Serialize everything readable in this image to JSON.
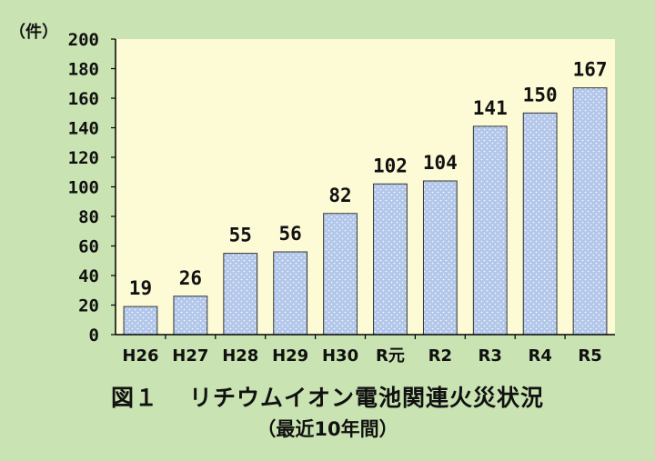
{
  "colors": {
    "background": "#c9e3b2",
    "plot_area": "#fdfbd6",
    "bar_fill": "#b3c7ea",
    "bar_dot": "#ffffff",
    "bar_stroke": "#333333"
  },
  "caption": {
    "label": "図１",
    "title": "リチウムイオン電池関連火災状況",
    "subtitle": "（最近10年間）"
  },
  "chart_data": {
    "type": "bar",
    "ylabel": "（件）",
    "ylim": [
      0,
      200
    ],
    "yticks": [
      0,
      20,
      40,
      60,
      80,
      100,
      120,
      140,
      160,
      180,
      200
    ],
    "grid": false,
    "categories": [
      "H26",
      "H27",
      "H28",
      "H29",
      "H30",
      "R元",
      "R2",
      "R3",
      "R4",
      "R5"
    ],
    "values": [
      19,
      26,
      55,
      56,
      82,
      102,
      104,
      141,
      150,
      167
    ],
    "data_labels": [
      "19",
      "26",
      "55",
      "56",
      "82",
      "102",
      "104",
      "141",
      "150",
      "167"
    ]
  }
}
